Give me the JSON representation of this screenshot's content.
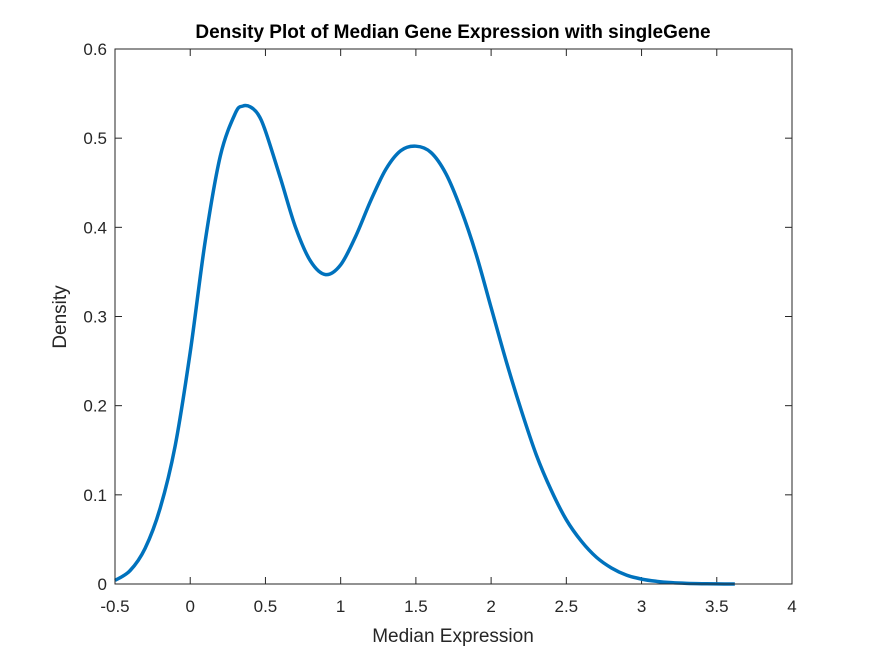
{
  "chart_data": {
    "type": "line",
    "title": "Density Plot of Median Gene Expression with singleGene",
    "xlabel": "Median Expression",
    "ylabel": "Density",
    "xlim": [
      -0.5,
      4
    ],
    "ylim": [
      0,
      0.6
    ],
    "xticks": [
      -0.5,
      0,
      0.5,
      1,
      1.5,
      2,
      2.5,
      3,
      3.5,
      4
    ],
    "xtick_labels": [
      "-0.5",
      "0",
      "0.5",
      "1",
      "1.5",
      "2",
      "2.5",
      "3",
      "3.5",
      "4"
    ],
    "yticks": [
      0,
      0.1,
      0.2,
      0.3,
      0.4,
      0.5,
      0.6
    ],
    "ytick_labels": [
      "0",
      "0.1",
      "0.2",
      "0.3",
      "0.4",
      "0.5",
      "0.6"
    ],
    "grid": false,
    "line_color": "#0072BD",
    "series": [
      {
        "x": [
          -0.5,
          -0.4,
          -0.3,
          -0.2,
          -0.1,
          0.0,
          0.1,
          0.2,
          0.3,
          0.35,
          0.4,
          0.45,
          0.5,
          0.6,
          0.7,
          0.8,
          0.9,
          1.0,
          1.1,
          1.2,
          1.3,
          1.4,
          1.5,
          1.6,
          1.7,
          1.8,
          1.9,
          2.0,
          2.1,
          2.2,
          2.3,
          2.4,
          2.5,
          2.6,
          2.7,
          2.8,
          2.9,
          3.0,
          3.1,
          3.2,
          3.3,
          3.4,
          3.5,
          3.62
        ],
        "y": [
          0.004,
          0.015,
          0.04,
          0.085,
          0.155,
          0.26,
          0.385,
          0.48,
          0.528,
          0.536,
          0.535,
          0.527,
          0.508,
          0.455,
          0.4,
          0.362,
          0.347,
          0.358,
          0.39,
          0.43,
          0.465,
          0.486,
          0.491,
          0.484,
          0.46,
          0.42,
          0.37,
          0.31,
          0.25,
          0.195,
          0.145,
          0.105,
          0.072,
          0.048,
          0.03,
          0.018,
          0.01,
          0.0055,
          0.003,
          0.0015,
          0.0007,
          0.0003,
          0.0001,
          0.0
        ]
      }
    ]
  }
}
